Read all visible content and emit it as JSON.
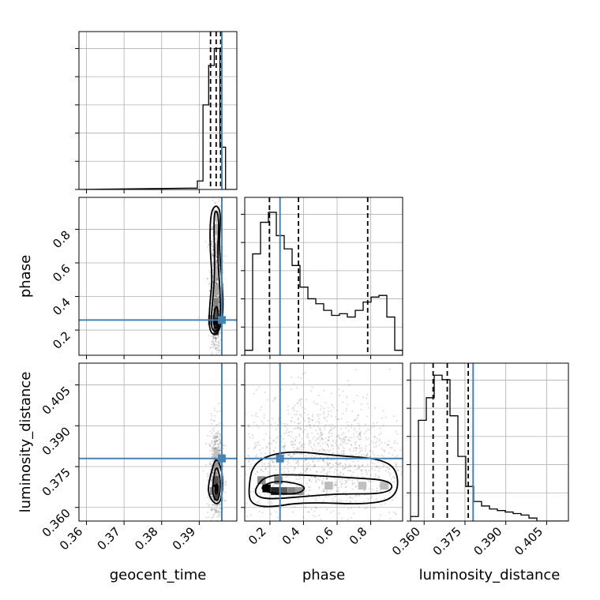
{
  "chart_data": {
    "type": "corner",
    "parameters": [
      "geocent_time",
      "phase",
      "luminosity_distance"
    ],
    "truth": {
      "geocent_time": 0.396,
      "phase": 0.26,
      "luminosity_distance": 0.378
    },
    "truth_color": "#4682b4",
    "axes": {
      "geocent_time": {
        "range": [
          0.358,
          0.4
        ],
        "ticks": [
          0.36,
          0.37,
          0.38,
          0.39
        ],
        "tick_labels": [
          "0.36",
          "0.37",
          "0.38",
          "0.39"
        ]
      },
      "phase": {
        "range": [
          0.05,
          0.99
        ],
        "ticks": [
          0.2,
          0.4,
          0.6,
          0.8
        ],
        "tick_labels": [
          "0.2",
          "0.4",
          "0.6",
          "0.8"
        ]
      },
      "luminosity_distance": {
        "range": [
          0.355,
          0.413
        ],
        "ticks": [
          0.36,
          0.375,
          0.39,
          0.405
        ],
        "tick_labels": [
          "0.360",
          "0.375",
          "0.390",
          "0.405"
        ]
      }
    },
    "histograms": {
      "geocent_time": {
        "edges": [
          0.388,
          0.3895,
          0.391,
          0.3925,
          0.394,
          0.3955,
          0.397,
          0.3985
        ],
        "counts": [
          0.01,
          0.06,
          0.6,
          0.88,
          1.0,
          0.3,
          0.0
        ],
        "quantiles": [
          0.393,
          0.3945,
          0.3957
        ],
        "ymax": 1.12
      },
      "phase": {
        "edges": [
          0.05,
          0.097,
          0.144,
          0.191,
          0.238,
          0.285,
          0.332,
          0.379,
          0.426,
          0.473,
          0.52,
          0.567,
          0.614,
          0.661,
          0.708,
          0.755,
          0.802,
          0.849,
          0.896,
          0.943,
          0.99
        ],
        "counts": [
          0.03,
          0.61,
          0.8,
          0.86,
          0.72,
          0.64,
          0.54,
          0.41,
          0.34,
          0.31,
          0.27,
          0.24,
          0.25,
          0.23,
          0.27,
          0.32,
          0.35,
          0.36,
          0.23,
          0.03
        ],
        "quantiles": [
          0.197,
          0.37,
          0.782
        ],
        "ymax": 0.95
      },
      "luminosity_distance": {
        "edges": [
          0.355,
          0.3579,
          0.3608,
          0.3637,
          0.3666,
          0.3695,
          0.3724,
          0.3753,
          0.3782,
          0.3811,
          0.384,
          0.3869,
          0.3898,
          0.3927,
          0.3956,
          0.3985,
          0.4014,
          0.4043,
          0.413
        ],
        "counts": [
          0.03,
          0.67,
          0.82,
          0.97,
          0.94,
          0.7,
          0.43,
          0.23,
          0.13,
          0.1,
          0.08,
          0.07,
          0.06,
          0.05,
          0.04,
          0.02,
          0.0,
          0.0
        ],
        "quantiles": [
          0.3633,
          0.3685,
          0.3762
        ],
        "ymax": 1.05
      }
    },
    "pairs": [
      {
        "x": "geocent_time",
        "y": "phase",
        "points": {
          "x_center": 0.3945,
          "x_sd": 0.0008,
          "y_center": 0.45,
          "y_sd": 0.24,
          "count": 900
        },
        "density": [
          {
            "x": 0.3945,
            "y": 0.24,
            "v": 1.0
          },
          {
            "x": 0.3945,
            "y": 0.2,
            "v": 0.75
          },
          {
            "x": 0.3945,
            "y": 0.3,
            "v": 0.65
          },
          {
            "x": 0.3945,
            "y": 0.36,
            "v": 0.45
          },
          {
            "x": 0.393,
            "y": 0.26,
            "v": 0.35
          },
          {
            "x": 0.3945,
            "y": 0.44,
            "v": 0.3
          },
          {
            "x": 0.3945,
            "y": 0.55,
            "v": 0.22
          },
          {
            "x": 0.3945,
            "y": 0.68,
            "v": 0.2
          },
          {
            "x": 0.3945,
            "y": 0.8,
            "v": 0.25
          },
          {
            "x": 0.3945,
            "y": 0.88,
            "v": 0.18
          }
        ],
        "contours": [
          [
            [
              0.393,
              0.9
            ],
            [
              0.3945,
              0.95
            ],
            [
              0.3958,
              0.9
            ],
            [
              0.3952,
              0.7
            ],
            [
              0.3963,
              0.44
            ],
            [
              0.3963,
              0.26
            ],
            [
              0.3945,
              0.16
            ],
            [
              0.3925,
              0.2
            ],
            [
              0.3928,
              0.36
            ],
            [
              0.3935,
              0.5
            ],
            [
              0.3928,
              0.7
            ]
          ],
          [
            [
              0.3938,
              0.88
            ],
            [
              0.3946,
              0.92
            ],
            [
              0.3953,
              0.85
            ],
            [
              0.3948,
              0.65
            ],
            [
              0.3956,
              0.42
            ],
            [
              0.3956,
              0.24
            ],
            [
              0.3944,
              0.18
            ],
            [
              0.393,
              0.22
            ],
            [
              0.3935,
              0.36
            ],
            [
              0.3942,
              0.55
            ]
          ],
          [
            [
              0.394,
              0.32
            ],
            [
              0.3948,
              0.35
            ],
            [
              0.3952,
              0.26
            ],
            [
              0.3945,
              0.2
            ],
            [
              0.3937,
              0.24
            ]
          ]
        ]
      },
      {
        "x": "geocent_time",
        "y": "luminosity_distance",
        "points": {
          "x_center": 0.3945,
          "x_sd": 0.0009,
          "y_center": 0.372,
          "y_sd": 0.009,
          "count": 700
        },
        "density": [
          {
            "x": 0.3945,
            "y": 0.367,
            "v": 1.0
          },
          {
            "x": 0.3945,
            "y": 0.364,
            "v": 0.7
          },
          {
            "x": 0.3945,
            "y": 0.37,
            "v": 0.65
          },
          {
            "x": 0.3935,
            "y": 0.366,
            "v": 0.4
          },
          {
            "x": 0.3945,
            "y": 0.375,
            "v": 0.35
          },
          {
            "x": 0.3945,
            "y": 0.38,
            "v": 0.18
          }
        ],
        "contours": [
          [
            [
              0.3945,
              0.379
            ],
            [
              0.3962,
              0.373
            ],
            [
              0.3962,
              0.365
            ],
            [
              0.3952,
              0.361
            ],
            [
              0.3935,
              0.362
            ],
            [
              0.3922,
              0.366
            ],
            [
              0.393,
              0.372
            ]
          ],
          [
            [
              0.3945,
              0.376
            ],
            [
              0.3956,
              0.371
            ],
            [
              0.3955,
              0.365
            ],
            [
              0.3948,
              0.362
            ],
            [
              0.3937,
              0.364
            ],
            [
              0.3935,
              0.368
            ]
          ],
          [
            [
              0.3944,
              0.369
            ],
            [
              0.395,
              0.368
            ],
            [
              0.3949,
              0.365
            ],
            [
              0.3941,
              0.365
            ]
          ]
        ]
      },
      {
        "x": "phase",
        "y": "luminosity_distance",
        "points": {
          "x_center": 0.5,
          "x_sd": 0.26,
          "y_center": 0.378,
          "y_sd": 0.012,
          "count": 1300
        },
        "density": [
          {
            "x": 0.18,
            "y": 0.367,
            "v": 1.0
          },
          {
            "x": 0.23,
            "y": 0.366,
            "v": 0.85
          },
          {
            "x": 0.28,
            "y": 0.366,
            "v": 0.6
          },
          {
            "x": 0.33,
            "y": 0.366,
            "v": 0.45
          },
          {
            "x": 0.38,
            "y": 0.366,
            "v": 0.35
          },
          {
            "x": 0.15,
            "y": 0.37,
            "v": 0.4
          },
          {
            "x": 0.25,
            "y": 0.37,
            "v": 0.45
          },
          {
            "x": 0.55,
            "y": 0.368,
            "v": 0.2
          },
          {
            "x": 0.75,
            "y": 0.368,
            "v": 0.18
          },
          {
            "x": 0.88,
            "y": 0.368,
            "v": 0.2
          }
        ],
        "contours": [
          [
            [
              0.07,
              0.366
            ],
            [
              0.1,
              0.377
            ],
            [
              0.3,
              0.381
            ],
            [
              0.6,
              0.379
            ],
            [
              0.85,
              0.378
            ],
            [
              0.96,
              0.374
            ],
            [
              0.96,
              0.364
            ],
            [
              0.8,
              0.361
            ],
            [
              0.4,
              0.362
            ],
            [
              0.2,
              0.36
            ],
            [
              0.09,
              0.361
            ]
          ],
          [
            [
              0.11,
              0.367
            ],
            [
              0.18,
              0.372
            ],
            [
              0.4,
              0.372
            ],
            [
              0.65,
              0.371
            ],
            [
              0.93,
              0.37
            ],
            [
              0.92,
              0.365
            ],
            [
              0.6,
              0.365
            ],
            [
              0.4,
              0.364
            ],
            [
              0.2,
              0.363
            ],
            [
              0.12,
              0.364
            ]
          ],
          [
            [
              0.15,
              0.368
            ],
            [
              0.25,
              0.37
            ],
            [
              0.42,
              0.368
            ],
            [
              0.38,
              0.365
            ],
            [
              0.24,
              0.365
            ],
            [
              0.16,
              0.366
            ]
          ]
        ]
      }
    ]
  }
}
